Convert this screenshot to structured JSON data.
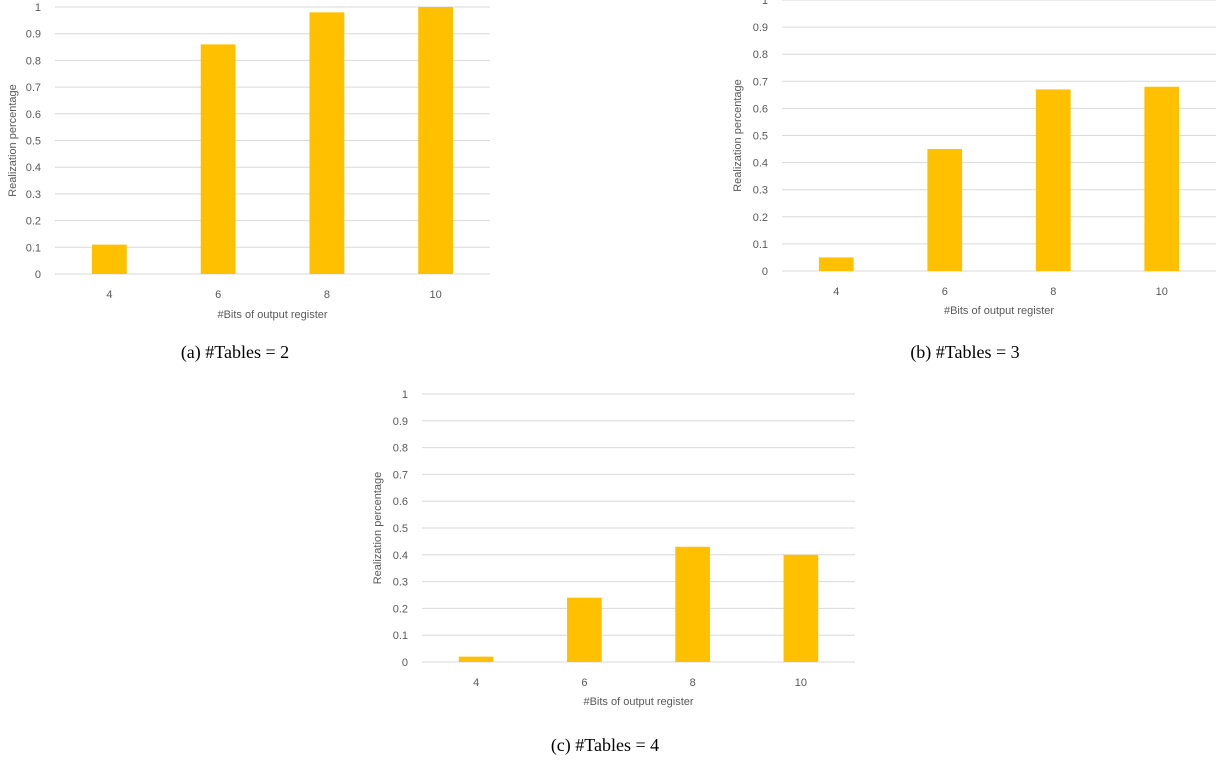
{
  "bar_color": "#FFC000",
  "grid_color": "#D9D9D9",
  "label_color": "#595959",
  "chart_data": [
    {
      "type": "bar",
      "caption": "(a)  #Tables = 2",
      "categories": [
        "4",
        "6",
        "8",
        "10"
      ],
      "values": [
        0.11,
        0.86,
        0.98,
        1.0
      ],
      "xlabel": "#Bits of output register",
      "ylabel": "Realization percentage",
      "ylim": [
        0,
        1
      ],
      "yticks": [
        "0",
        "0.1",
        "0.2",
        "0.3",
        "0.4",
        "0.5",
        "0.6",
        "0.7",
        "0.8",
        "0.9",
        "1"
      ],
      "grid": true,
      "legend": "none"
    },
    {
      "type": "bar",
      "caption": "(b)  #Tables = 3",
      "categories": [
        "4",
        "6",
        "8",
        "10"
      ],
      "values": [
        0.05,
        0.45,
        0.67,
        0.68
      ],
      "xlabel": "#Bits of output register",
      "ylabel": "Realization percentage",
      "ylim": [
        0,
        1
      ],
      "yticks": [
        "0",
        "0.1",
        "0.2",
        "0.3",
        "0.4",
        "0.5",
        "0.6",
        "0.7",
        "0.8",
        "0.9",
        "1"
      ],
      "grid": true,
      "legend": "none"
    },
    {
      "type": "bar",
      "caption": "(c)  #Tables = 4",
      "categories": [
        "4",
        "6",
        "8",
        "10"
      ],
      "values": [
        0.02,
        0.24,
        0.43,
        0.4
      ],
      "xlabel": "#Bits of output register",
      "ylabel": "Realization percentage",
      "ylim": [
        0,
        1
      ],
      "yticks": [
        "0",
        "0.1",
        "0.2",
        "0.3",
        "0.4",
        "0.5",
        "0.6",
        "0.7",
        "0.8",
        "0.9",
        "1"
      ],
      "grid": true,
      "legend": "none"
    }
  ]
}
